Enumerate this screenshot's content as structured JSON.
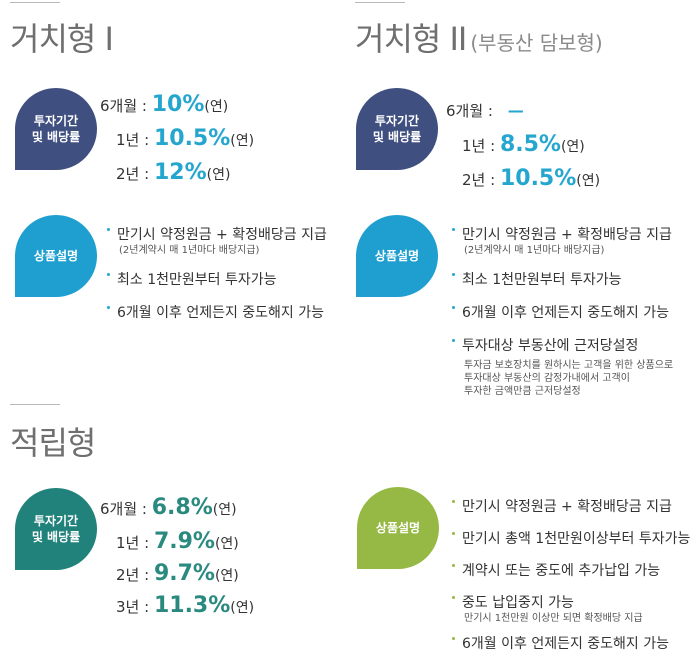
{
  "section1": {
    "title": "거치형 I",
    "rates_badge": [
      "투자기간",
      "및 배당률"
    ],
    "rates": [
      {
        "term": "6개월 :",
        "value": "10%",
        "unit": "(연)"
      },
      {
        "term": "1년 :",
        "value": "10.5%",
        "unit": "(연)"
      },
      {
        "term": "2년 :",
        "value": "12%",
        "unit": "(연)"
      }
    ],
    "desc_badge": "상품설명",
    "items": [
      {
        "text": "만기시 약정원금 + 확정배당금 지급",
        "note": "(2년계약시 매 1년마다 배당지급)"
      },
      {
        "text": "최소 1천만원부터 투자가능"
      },
      {
        "text": "6개월 이후 언제든지 중도해지 가능"
      }
    ]
  },
  "section2": {
    "title": "거치형 II",
    "subtitle": "(부동산 담보형)",
    "rates_badge": [
      "투자기간",
      "및 배당률"
    ],
    "rates": [
      {
        "term": "6개월 :",
        "value": "—",
        "unit": ""
      },
      {
        "term": "1년 :",
        "value": "8.5%",
        "unit": "(연)"
      },
      {
        "term": "2년 :",
        "value": "10.5%",
        "unit": "(연)"
      }
    ],
    "desc_badge": "상품설명",
    "items": [
      {
        "text": "만기시 약정원금 + 확정배당금 지급",
        "note": "(2년계약시 매 1년마다 배당지급)"
      },
      {
        "text": "최소 1천만원부터 투자가능"
      },
      {
        "text": "6개월 이후 언제든지 중도해지 가능"
      },
      {
        "text": "투자대상 부동산에 근저당설정",
        "notes": [
          "투자금 보호장치를 원하시는 고객을 위한 상품으로",
          "투자대상 부동산의 감정가내에서 고객이",
          "투자한 금액만큼 근저당설정"
        ]
      }
    ]
  },
  "section3": {
    "title": "적립형",
    "rates_badge": [
      "투자기간",
      "및 배당률"
    ],
    "rates": [
      {
        "term": "6개월 :",
        "value": "6.8%",
        "unit": "(연)"
      },
      {
        "term": "1년 :",
        "value": "7.9%",
        "unit": "(연)"
      },
      {
        "term": "2년 :",
        "value": "9.7%",
        "unit": "(연)"
      },
      {
        "term": "3년 :",
        "value": "11.3%",
        "unit": "(연)"
      }
    ],
    "desc_badge": "상품설명",
    "items": [
      {
        "text": "만기시 약정원금 + 확정배당금 지급"
      },
      {
        "text": "만기시 총액 1천만원이상부터 투자가능"
      },
      {
        "text": "계약시 또는 중도에 추가납입 가능"
      },
      {
        "text": "중도 납입중지 가능",
        "note": "만기시 1천만원 이상만 되면 확정배당 지급"
      },
      {
        "text": "6개월 이후 언제든지 중도해지 가능"
      }
    ]
  },
  "colors": {
    "navy": "#3f4f80",
    "blue": "#1e9fd0",
    "teal": "#21817b",
    "green": "#96b844",
    "rate_blue": "#25a6cf",
    "rate_teal": "#2a8a80"
  }
}
